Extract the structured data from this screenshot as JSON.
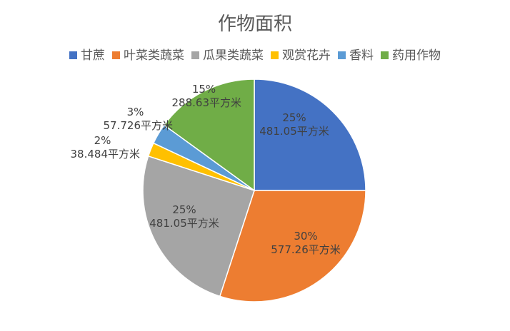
{
  "chart_data": {
    "type": "pie",
    "title": "作物面积",
    "legend_position": "top",
    "start_angle_deg": 0,
    "direction": "clockwise",
    "slices": [
      {
        "label": "甘蔗",
        "value": 481.05,
        "percent": "25%",
        "value_label": "481.05平方米",
        "color": "#4472C4"
      },
      {
        "label": "叶菜类蔬菜",
        "value": 577.26,
        "percent": "30%",
        "value_label": "577.26平方米",
        "color": "#ED7D31"
      },
      {
        "label": "瓜果类蔬菜",
        "value": 481.05,
        "percent": "25%",
        "value_label": "481.05平方米",
        "color": "#A5A5A5"
      },
      {
        "label": "观赏花卉",
        "value": 38.484,
        "percent": "2%",
        "value_label": "38.484平方米",
        "color": "#FFC000"
      },
      {
        "label": "香料",
        "value": 57.726,
        "percent": "3%",
        "value_label": "57.726平方米",
        "color": "#5B9BD5"
      },
      {
        "label": "药用作物",
        "value": 288.63,
        "percent": "15%",
        "value_label": "288.63平方米",
        "color": "#70AD47"
      }
    ]
  }
}
